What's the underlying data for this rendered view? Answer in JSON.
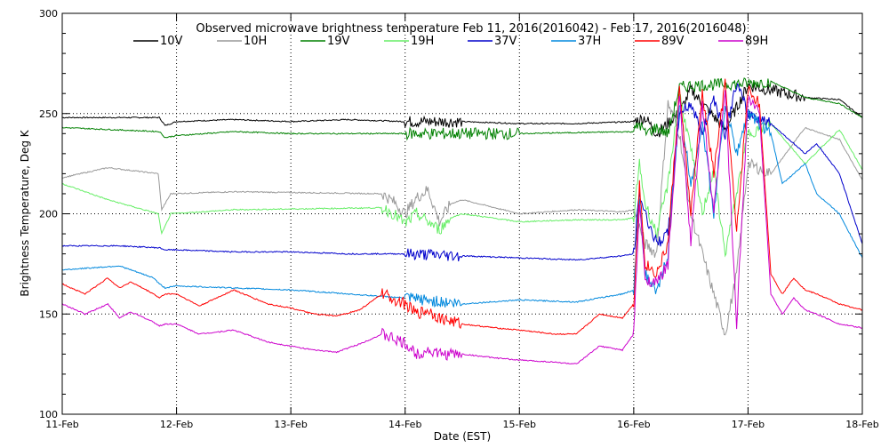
{
  "chart_data": {
    "type": "line",
    "title": "Observed microwave brightness temperature Feb 11, 2016(2016042) - Feb 17, 2016(2016048)",
    "xlabel": "Date (EST)",
    "ylabel": "Brightness Temperature, Deg K",
    "ylim": [
      100,
      300
    ],
    "xlim": [
      0,
      7
    ],
    "yticks": [
      100,
      150,
      200,
      250,
      300
    ],
    "xticks": [
      {
        "v": 0,
        "label": "11-Feb"
      },
      {
        "v": 1,
        "label": "12-Feb"
      },
      {
        "v": 2,
        "label": "13-Feb"
      },
      {
        "v": 3,
        "label": "14-Feb"
      },
      {
        "v": 4,
        "label": "15-Feb"
      },
      {
        "v": 5,
        "label": "16-Feb"
      },
      {
        "v": 6,
        "label": "17-Feb"
      },
      {
        "v": 7,
        "label": "18-Feb"
      }
    ],
    "grid": "dotted",
    "legend_position": "top",
    "series": [
      {
        "name": "10V",
        "color": "#000000",
        "x": [
          0,
          0.5,
          0.85,
          0.9,
          1.0,
          1.5,
          2.0,
          2.5,
          3.0,
          3.5,
          4.0,
          4.5,
          5.0,
          5.1,
          5.2,
          5.3,
          5.35,
          5.4,
          5.5,
          5.6,
          5.8,
          6.0,
          6.5,
          6.8,
          7.0
        ],
        "values": [
          248,
          248,
          248,
          244,
          246,
          247,
          246,
          247,
          246,
          246,
          245,
          245,
          246,
          248,
          240,
          245,
          248,
          250,
          262,
          255,
          242,
          264,
          258,
          257,
          248
        ]
      },
      {
        "name": "10H",
        "color": "#999999",
        "x": [
          0,
          0.4,
          0.84,
          0.87,
          0.95,
          1.5,
          2.8,
          2.9,
          3.0,
          3.1,
          3.2,
          3.3,
          3.4,
          3.5,
          4.0,
          4.5,
          4.9,
          5.0,
          5.1,
          5.2,
          5.3,
          5.4,
          5.5,
          5.6,
          5.7,
          5.8,
          5.9,
          6.0,
          6.2,
          6.5,
          6.8,
          7.0
        ],
        "values": [
          218,
          223,
          220,
          202,
          210,
          211,
          210,
          206,
          200,
          208,
          212,
          196,
          205,
          207,
          200,
          202,
          201,
          202,
          185,
          180,
          255,
          240,
          200,
          180,
          160,
          140,
          170,
          225,
          220,
          243,
          237,
          217
        ]
      },
      {
        "name": "19V",
        "color": "#008000",
        "x": [
          0,
          0.85,
          0.9,
          1.0,
          1.5,
          2.0,
          3.0,
          4.0,
          5.0,
          5.05,
          5.1,
          5.2,
          5.3,
          5.4,
          5.5,
          6.0,
          6.2,
          6.5,
          6.8,
          7.0
        ],
        "values": [
          243,
          241,
          238,
          239,
          241,
          240,
          240,
          240,
          241,
          245,
          240,
          243,
          240,
          263,
          264,
          265,
          266,
          258,
          255,
          248
        ]
      },
      {
        "name": "19H",
        "color": "#66ee66",
        "x": [
          0,
          0.4,
          0.84,
          0.87,
          0.95,
          1.5,
          2.8,
          2.9,
          3.0,
          3.1,
          3.2,
          3.3,
          3.4,
          3.5,
          4.0,
          4.5,
          4.9,
          5.0,
          5.05,
          5.1,
          5.2,
          5.3,
          5.4,
          5.5,
          5.6,
          5.7,
          5.8,
          6.0,
          6.2,
          6.5,
          6.8,
          7.0
        ],
        "values": [
          215,
          207,
          200,
          190,
          200,
          202,
          203,
          200,
          195,
          200,
          196,
          192,
          198,
          200,
          196,
          197,
          197,
          198,
          225,
          205,
          190,
          215,
          260,
          232,
          200,
          222,
          180,
          240,
          245,
          225,
          242,
          222
        ]
      },
      {
        "name": "37V",
        "color": "#0000cc",
        "x": [
          0,
          0.5,
          0.85,
          0.9,
          1.0,
          1.5,
          2.0,
          2.5,
          3.0,
          3.5,
          4.0,
          4.5,
          4.9,
          5.0,
          5.05,
          5.1,
          5.2,
          5.3,
          5.4,
          5.5,
          5.6,
          5.7,
          5.8,
          5.9,
          6.0,
          6.2,
          6.4,
          6.5,
          6.6,
          6.8,
          7.0
        ],
        "values": [
          184,
          184,
          183,
          182,
          182,
          181,
          181,
          180,
          180,
          179,
          178,
          177,
          179,
          180,
          210,
          200,
          185,
          190,
          250,
          255,
          240,
          258,
          240,
          265,
          250,
          245,
          235,
          230,
          235,
          220,
          185
        ]
      },
      {
        "name": "37H",
        "color": "#0088dd",
        "x": [
          0,
          0.5,
          0.8,
          0.85,
          0.9,
          1.0,
          1.5,
          2.0,
          2.5,
          3.0,
          3.5,
          4.0,
          4.5,
          4.9,
          5.0,
          5.05,
          5.1,
          5.2,
          5.3,
          5.4,
          5.5,
          5.6,
          5.7,
          5.8,
          5.9,
          6.0,
          6.2,
          6.3,
          6.5,
          6.6,
          6.8,
          7.0
        ],
        "values": [
          172,
          174,
          168,
          165,
          163,
          164,
          163,
          162,
          160,
          158,
          155,
          157,
          156,
          160,
          162,
          210,
          170,
          160,
          180,
          255,
          215,
          245,
          200,
          255,
          230,
          250,
          240,
          215,
          225,
          210,
          200,
          178
        ]
      },
      {
        "name": "89V",
        "color": "#ff0000",
        "x": [
          0,
          0.2,
          0.4,
          0.5,
          0.6,
          0.8,
          0.85,
          0.9,
          1.0,
          1.2,
          1.5,
          1.8,
          2.0,
          2.2,
          2.4,
          2.6,
          2.8,
          3.0,
          3.1,
          3.2,
          3.3,
          3.5,
          3.8,
          4.0,
          4.3,
          4.5,
          4.7,
          4.9,
          5.0,
          5.05,
          5.1,
          5.2,
          5.3,
          5.4,
          5.5,
          5.6,
          5.7,
          5.8,
          5.9,
          6.0,
          6.1,
          6.2,
          6.3,
          6.4,
          6.5,
          6.6,
          6.8,
          7.0
        ],
        "values": [
          165,
          160,
          168,
          163,
          166,
          160,
          158,
          160,
          160,
          154,
          162,
          155,
          153,
          150,
          149,
          152,
          160,
          155,
          150,
          152,
          148,
          145,
          143,
          142,
          140,
          140,
          150,
          148,
          155,
          215,
          175,
          170,
          185,
          262,
          200,
          260,
          220,
          265,
          190,
          262,
          255,
          170,
          160,
          168,
          162,
          160,
          155,
          152
        ]
      },
      {
        "name": "89H",
        "color": "#cc00cc",
        "x": [
          0,
          0.2,
          0.4,
          0.5,
          0.6,
          0.8,
          0.85,
          0.9,
          1.0,
          1.2,
          1.5,
          1.8,
          2.0,
          2.2,
          2.4,
          2.6,
          2.8,
          3.0,
          3.1,
          3.2,
          3.3,
          3.5,
          3.8,
          4.0,
          4.3,
          4.5,
          4.7,
          4.9,
          5.0,
          5.05,
          5.1,
          5.2,
          5.3,
          5.4,
          5.5,
          5.6,
          5.7,
          5.8,
          5.9,
          6.0,
          6.1,
          6.2,
          6.3,
          6.4,
          6.5,
          6.6,
          6.8,
          7.0
        ],
        "values": [
          155,
          150,
          155,
          148,
          151,
          146,
          144,
          145,
          145,
          140,
          142,
          136,
          134,
          132,
          131,
          135,
          140,
          135,
          130,
          132,
          130,
          130,
          128,
          127,
          126,
          125,
          134,
          132,
          140,
          205,
          168,
          165,
          175,
          258,
          185,
          255,
          200,
          262,
          145,
          258,
          250,
          160,
          150,
          158,
          152,
          150,
          145,
          143
        ]
      }
    ]
  }
}
